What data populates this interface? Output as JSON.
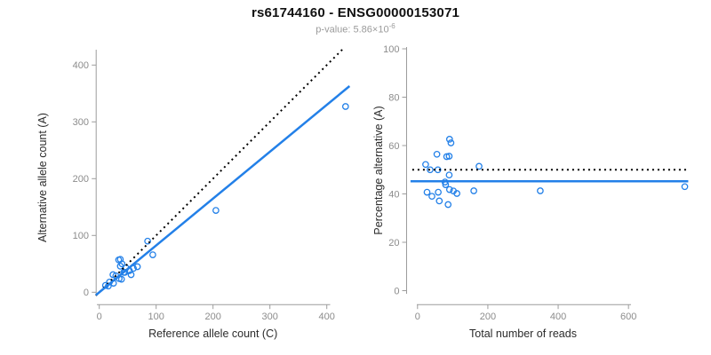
{
  "header": {
    "title": "rs61744160 - ENSG00000153071",
    "subtitle_prefix": "p-value: 5.86×10",
    "subtitle_exponent": "-6"
  },
  "colors": {
    "point_blue": "#2380E8",
    "fit_blue": "#2380E8",
    "dotted_line": "#000000",
    "axis_line": "#9C9C9C",
    "tick_label": "#8C8C8C",
    "axis_title": "#2B2B2B",
    "title_text": "#111111",
    "subtitle_text": "#9B9B9B"
  },
  "chart_data": [
    {
      "type": "scatter",
      "name": "allele-counts-panel",
      "xlabel": "Reference allele count (C)",
      "ylabel": "Alternative allele count (A)",
      "xticks": [
        0,
        100,
        200,
        300,
        400
      ],
      "yticks": [
        0,
        100,
        200,
        300,
        400
      ],
      "xlim": [
        -6,
        445
      ],
      "ylim": [
        -6,
        436
      ],
      "grid": false,
      "points": [
        [
          34,
          57
        ],
        [
          37,
          58
        ],
        [
          24,
          31
        ],
        [
          37,
          46
        ],
        [
          40,
          50
        ],
        [
          11,
          12
        ],
        [
          18,
          18
        ],
        [
          29,
          29
        ],
        [
          85,
          90
        ],
        [
          47,
          43
        ],
        [
          43,
          35
        ],
        [
          45,
          35
        ],
        [
          16,
          11
        ],
        [
          25,
          16
        ],
        [
          35,
          24
        ],
        [
          53,
          38
        ],
        [
          60,
          42
        ],
        [
          67,
          45
        ],
        [
          94,
          66
        ],
        [
          39,
          23
        ],
        [
          56,
          31
        ],
        [
          205,
          144
        ],
        [
          433,
          327
        ]
      ],
      "lines": [
        {
          "name": "identity-line",
          "style": "dotted",
          "slope": 1,
          "intercept": 0,
          "x_range": [
            -6,
            428
          ]
        },
        {
          "name": "fit-line",
          "style": "solid",
          "slope": 0.825,
          "intercept": 0,
          "x_range": [
            -6,
            440
          ]
        }
      ]
    },
    {
      "type": "scatter",
      "name": "percentage-panel",
      "xlabel": "Total number of reads",
      "ylabel": "Percentage alternative (A)",
      "xticks": [
        0,
        200,
        400,
        600
      ],
      "yticks": [
        0,
        20,
        40,
        60,
        80,
        100
      ],
      "xlim": [
        -25,
        785
      ],
      "ylim": [
        -3,
        104
      ],
      "grid": false,
      "points": [
        [
          91,
          62.6
        ],
        [
          95,
          61.1
        ],
        [
          55,
          56.4
        ],
        [
          83,
          55.4
        ],
        [
          90,
          55.6
        ],
        [
          23,
          52.2
        ],
        [
          36,
          50.0
        ],
        [
          58,
          50.0
        ],
        [
          175,
          51.4
        ],
        [
          90,
          47.8
        ],
        [
          78,
          44.9
        ],
        [
          80,
          43.8
        ],
        [
          27,
          40.7
        ],
        [
          41,
          39.0
        ],
        [
          59,
          40.7
        ],
        [
          91,
          41.8
        ],
        [
          102,
          41.2
        ],
        [
          112,
          40.2
        ],
        [
          160,
          41.3
        ],
        [
          62,
          37.1
        ],
        [
          87,
          35.6
        ],
        [
          349,
          41.3
        ],
        [
          760,
          43.0
        ]
      ],
      "lines": [
        {
          "name": "expected-50pct-line",
          "style": "dotted",
          "slope": 0,
          "intercept": 50,
          "x_range": [
            -15,
            765
          ]
        },
        {
          "name": "mean-percentage-line",
          "style": "solid",
          "slope": 0,
          "intercept": 45.2,
          "x_range": [
            -20,
            770
          ]
        }
      ]
    }
  ]
}
